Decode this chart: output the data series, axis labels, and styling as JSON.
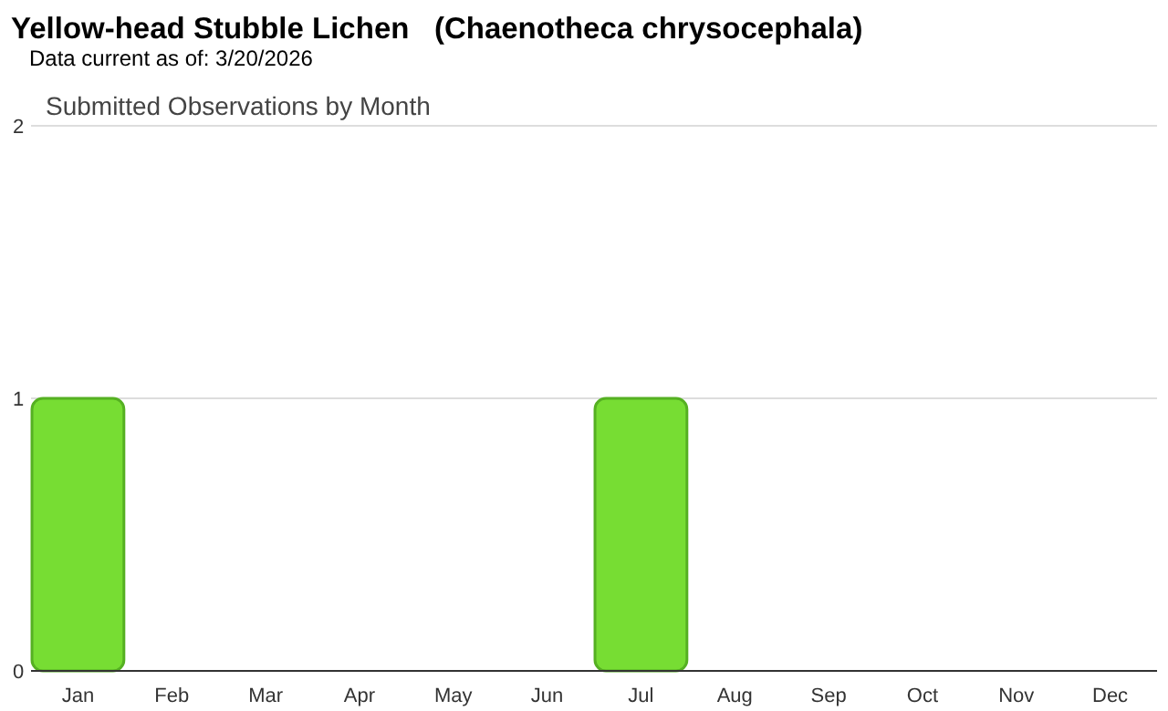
{
  "chart_data": {
    "type": "bar",
    "title": "Yellow-head Stubble Lichen   (Chaenotheca chrysocephala)",
    "subtitle": "Data current as of: 3/20/2026",
    "annotations": [
      "Submitted Observations by Month"
    ],
    "categories": [
      "Jan",
      "Feb",
      "Mar",
      "Apr",
      "May",
      "Jun",
      "Jul",
      "Aug",
      "Sep",
      "Oct",
      "Nov",
      "Dec"
    ],
    "values": [
      1,
      0,
      0,
      0,
      0,
      0,
      1,
      0,
      0,
      0,
      0,
      0
    ],
    "color": "#77dd33",
    "ylim": [
      0,
      2
    ],
    "yticks": [
      0,
      1,
      2
    ],
    "grid": "y"
  }
}
